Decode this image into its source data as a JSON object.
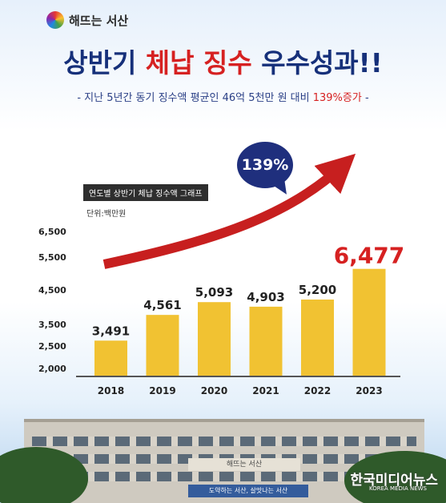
{
  "brand": {
    "name": "해뜨는 서산"
  },
  "headline": {
    "part1": "상반기 ",
    "part2": "체납 징수",
    "part3": " 우수성과!!"
  },
  "subline": {
    "part1": "- 지난 5년간 동기 징수액 평균인 46억 5천만 원 대비 ",
    "part2": "139%증가",
    "part3": " -"
  },
  "bubble": "139%",
  "colors": {
    "bar": "#f1c232",
    "highlight": "#d62121",
    "navy": "#1f2f7d",
    "arrow": "#c71f1f"
  },
  "chart_data": {
    "type": "bar",
    "title": "연도별 상반기 체납 징수액 그래프",
    "unit": "단위:백만원",
    "categories": [
      "2018",
      "2019",
      "2020",
      "2021",
      "2022",
      "2023"
    ],
    "values": [
      3491,
      4561,
      5093,
      4903,
      5200,
      6477
    ],
    "value_labels": [
      "3,491",
      "4,561",
      "5,093",
      "4,903",
      "5,200",
      "6,477"
    ],
    "yticks": [
      "2,000",
      "2,500",
      "3,500",
      "4,500",
      "5,500",
      "6,500"
    ],
    "ylim": [
      2000,
      7000
    ],
    "grid": false,
    "annotation": "139%"
  },
  "photo": {
    "sign_top": "해뜨는 서산",
    "sign_bottom": "도약하는 서산, 살맛나는 서산"
  },
  "watermark": {
    "name": "한국미디어뉴스",
    "sub": "KOREA MEDIA NEWS"
  }
}
